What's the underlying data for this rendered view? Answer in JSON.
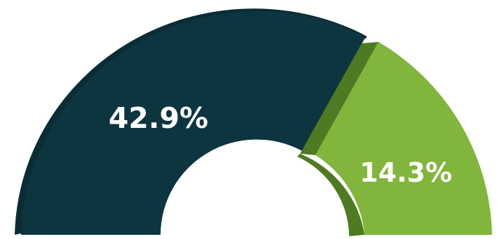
{
  "chart_data": {
    "type": "pie",
    "style": "3d-half-donut",
    "slices": [
      {
        "label": "42.9%",
        "value": 42.9,
        "color": "#0d3540",
        "side_color": "#0a2c35"
      },
      {
        "label": "14.3%",
        "value": 14.3,
        "color": "#82b53b",
        "side_color": "#4e7a22"
      }
    ]
  }
}
